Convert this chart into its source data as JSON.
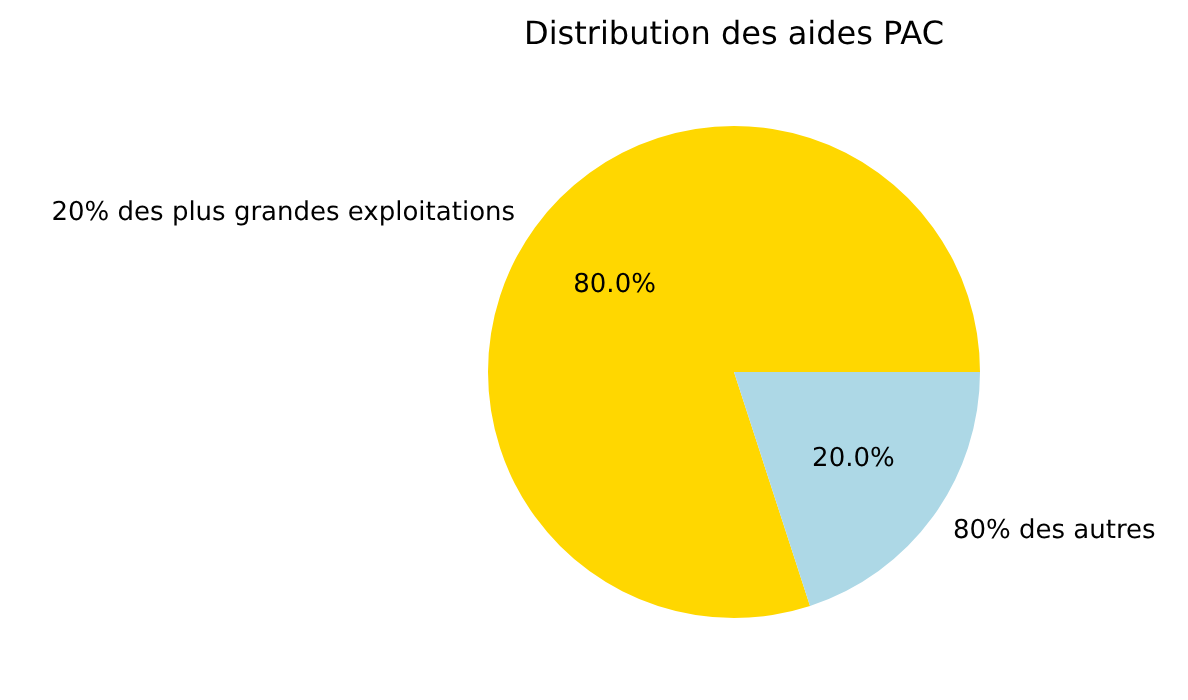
{
  "chart_data": {
    "type": "pie",
    "title": "Distribution des aides PAC",
    "categories": [
      "20% des plus grandes exploitations",
      "80% des autres"
    ],
    "values": [
      80,
      20
    ],
    "colors": [
      "#ffd700",
      "#add8e6"
    ],
    "value_labels": [
      "80.0%",
      "20.0%"
    ]
  }
}
